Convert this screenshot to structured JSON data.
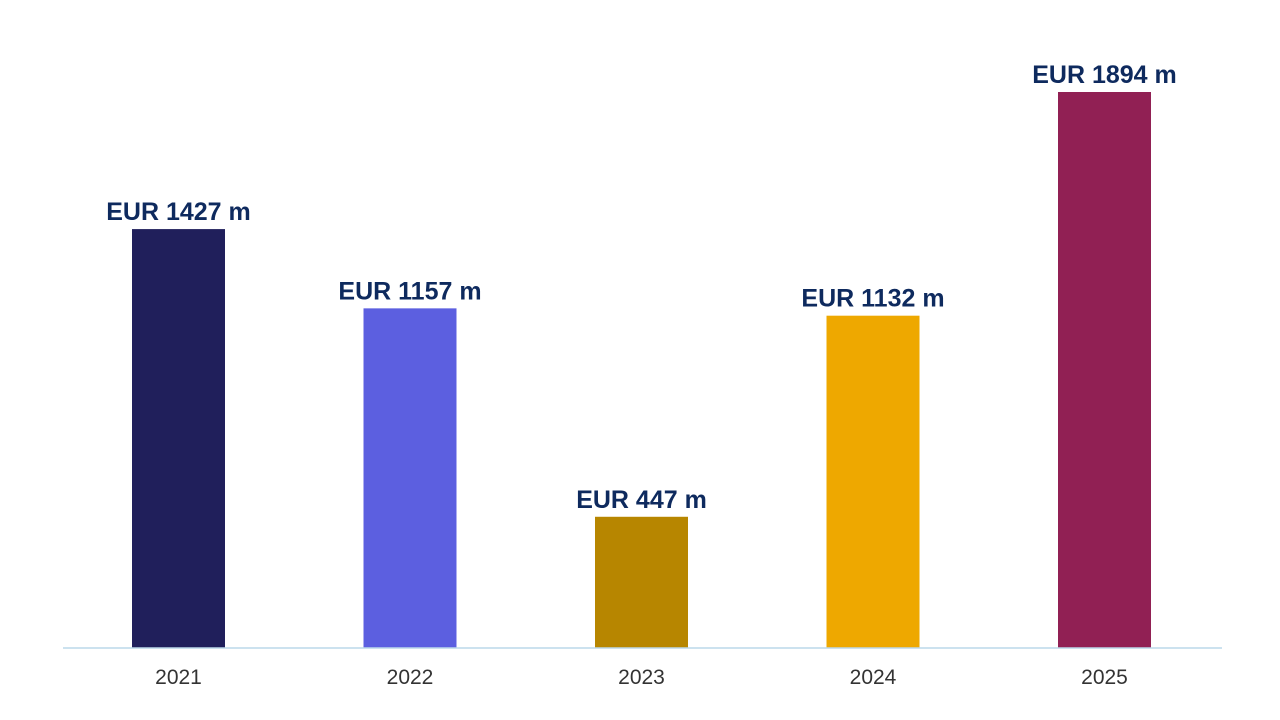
{
  "chart_data": {
    "type": "bar",
    "categories": [
      "2021",
      "2022",
      "2023",
      "2024",
      "2025"
    ],
    "values": [
      1427,
      1157,
      447,
      1132,
      1894
    ],
    "data_labels": [
      "EUR 1427 m",
      "EUR 1157 m",
      "EUR 447 m",
      "EUR 1132 m",
      "EUR 1894 m"
    ],
    "bar_colors": [
      "#201F5B",
      "#5C5FE0",
      "#B78600",
      "#EEA800",
      "#912054"
    ],
    "title": "",
    "xlabel": "",
    "ylabel": "",
    "ylim": [
      0,
      1894
    ],
    "grid": false,
    "legend": "none",
    "axis_color": "#BCD8EA",
    "label_color": "#0E2A5E",
    "tick_color": "#333333"
  }
}
